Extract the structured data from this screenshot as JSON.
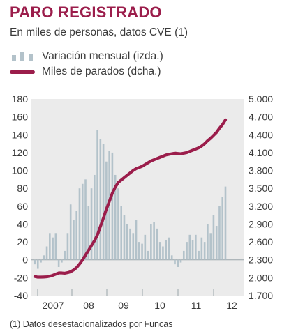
{
  "header": {
    "title": "PARO REGISTRADO",
    "subtitle": "En miles de personas, datos CVE (1)"
  },
  "legend": {
    "bars_label": "Variación mensual (izda.)",
    "line_label": "Miles de parados (dcha.)"
  },
  "footnote": "(1) Datos desestacionalizados por Funcas",
  "colors": {
    "accent": "#9b1d4b",
    "bars": "#b3c2ca",
    "line": "#9b1d4b",
    "panel": "#ebebeb"
  },
  "chart_data": {
    "type": "bar+line",
    "x_labels": [
      "2007",
      "08",
      "09",
      "10",
      "11",
      "12"
    ],
    "y_left": {
      "range": [
        -40,
        180
      ],
      "ticks": [
        "180",
        "160",
        "140",
        "120",
        "100",
        "80",
        "60",
        "40",
        "20",
        "0",
        "-20",
        "-40"
      ]
    },
    "y_right": {
      "range": [
        1700,
        5000
      ],
      "ticks": [
        "5.000",
        "4.700",
        "4.400",
        "4.100",
        "3.800",
        "3.500",
        "3.200",
        "2.900",
        "2.600",
        "2.300",
        "2.000",
        "1.700"
      ]
    },
    "series": [
      {
        "name": "Variación mensual (izda.)",
        "kind": "bar",
        "axis": "left",
        "values": [
          -5,
          -10,
          -3,
          5,
          15,
          30,
          25,
          30,
          -8,
          -3,
          10,
          30,
          62,
          45,
          55,
          80,
          85,
          90,
          60,
          80,
          95,
          145,
          135,
          130,
          110,
          122,
          120,
          95,
          80,
          60,
          50,
          40,
          35,
          30,
          45,
          20,
          18,
          28,
          10,
          40,
          42,
          35,
          20,
          15,
          22,
          25,
          5,
          -5,
          -8,
          -3,
          10,
          20,
          28,
          22,
          28,
          10,
          25,
          20,
          40,
          30,
          50,
          38,
          60,
          70,
          82
        ]
      },
      {
        "name": "Miles de parados (dcha.)",
        "kind": "line",
        "axis": "right",
        "values": [
          2020,
          2010,
          2010,
          2012,
          2015,
          2025,
          2040,
          2060,
          2080,
          2080,
          2075,
          2085,
          2100,
          2130,
          2170,
          2230,
          2300,
          2380,
          2460,
          2540,
          2620,
          2720,
          2860,
          3000,
          3150,
          3280,
          3420,
          3520,
          3600,
          3640,
          3680,
          3720,
          3760,
          3800,
          3830,
          3850,
          3870,
          3900,
          3930,
          3960,
          3980,
          4000,
          4020,
          4040,
          4060,
          4070,
          4080,
          4090,
          4085,
          4080,
          4090,
          4100,
          4120,
          4140,
          4160,
          4180,
          4210,
          4250,
          4300,
          4340,
          4390,
          4440,
          4510,
          4570,
          4650
        ]
      }
    ],
    "grid": false,
    "legend_position": "top-left"
  }
}
